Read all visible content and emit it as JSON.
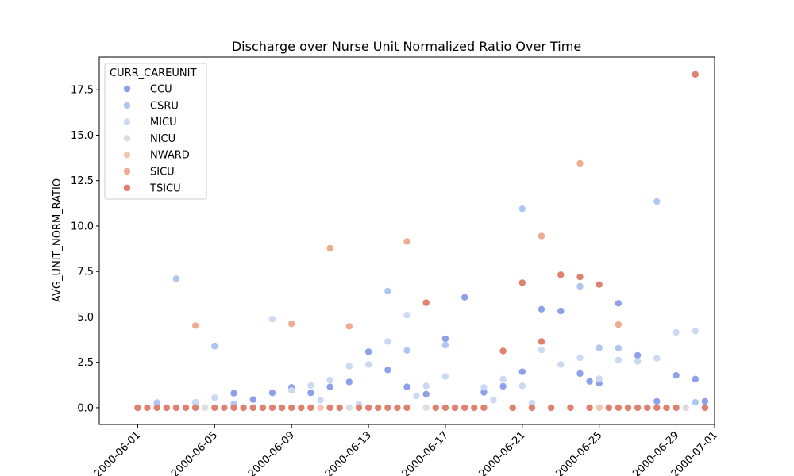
{
  "chart_data": {
    "type": "scatter",
    "title": "Discharge over Nurse Unit Normalized Ratio Over Time",
    "xlabel": "",
    "ylabel": "AVG_UNIT_NORM_RATIO",
    "xlim": [
      "2000-05-30",
      "2000-07-01"
    ],
    "ylim": [
      -0.92,
      19.3
    ],
    "x_ticks": [
      "2000-06-01",
      "2000-06-05",
      "2000-06-09",
      "2000-06-13",
      "2000-06-17",
      "2000-06-21",
      "2000-06-25",
      "2000-06-29",
      "2000-07-01"
    ],
    "y_ticks": [
      0.0,
      2.5,
      5.0,
      7.5,
      10.0,
      12.5,
      15.0,
      17.5
    ],
    "y_tick_labels": [
      "0.0",
      "2.5",
      "5.0",
      "7.5",
      "10.0",
      "12.5",
      "15.0",
      "17.5"
    ],
    "grid": false,
    "legend": {
      "title": "CURR_CAREUNIT",
      "placement": "upper-left"
    },
    "series": [
      {
        "name": "CCU",
        "color": "#8da0ea",
        "points": [
          [
            "2000-06-01",
            0
          ],
          [
            "2000-06-05",
            3.4
          ],
          [
            "2000-06-06",
            0.8
          ],
          [
            "2000-06-07",
            0.45
          ],
          [
            "2000-06-08",
            0.82
          ],
          [
            "2000-06-09",
            1.12
          ],
          [
            "2000-06-10",
            0.82
          ],
          [
            "2000-06-11",
            1.15
          ],
          [
            "2000-06-12",
            1.42
          ],
          [
            "2000-06-13",
            3.08
          ],
          [
            "2000-06-14",
            2.08
          ],
          [
            "2000-06-15",
            1.15
          ],
          [
            "2000-06-16",
            0.75
          ],
          [
            "2000-06-17",
            3.8
          ],
          [
            "2000-06-18",
            6.08
          ],
          [
            "2000-06-19",
            0.85
          ],
          [
            "2000-06-20",
            1.18
          ],
          [
            "2000-06-21",
            1.98
          ],
          [
            "2000-06-22",
            5.42
          ],
          [
            "2000-06-23",
            5.32
          ],
          [
            "2000-06-24",
            1.88
          ],
          [
            "2000-06-24.5",
            1.45
          ],
          [
            "2000-06-25",
            1.35
          ],
          [
            "2000-06-26",
            5.75
          ],
          [
            "2000-06-27",
            2.88
          ],
          [
            "2000-06-28",
            0.35
          ],
          [
            "2000-06-29",
            1.78
          ],
          [
            "2000-06-30",
            1.58
          ],
          [
            "2000-06-30.5",
            0.35
          ]
        ]
      },
      {
        "name": "CSRU",
        "color": "#afc6f2",
        "points": [
          [
            "2000-06-02",
            0.28
          ],
          [
            "2000-06-03",
            7.1
          ],
          [
            "2000-06-04",
            0.3
          ],
          [
            "2000-06-05",
            3.38
          ],
          [
            "2000-06-06",
            0.2
          ],
          [
            "2000-06-14",
            6.42
          ],
          [
            "2000-06-15",
            3.15
          ],
          [
            "2000-06-17",
            3.45
          ],
          [
            "2000-06-21",
            10.95
          ],
          [
            "2000-06-24",
            6.68
          ],
          [
            "2000-06-25",
            3.3
          ],
          [
            "2000-06-26",
            3.28
          ],
          [
            "2000-06-28",
            11.35
          ],
          [
            "2000-06-30",
            0.3
          ]
        ]
      },
      {
        "name": "MICU",
        "color": "#cbd9f2",
        "points": [
          [
            "2000-06-04",
            0.28
          ],
          [
            "2000-06-05",
            0.55
          ],
          [
            "2000-06-08",
            4.88
          ],
          [
            "2000-06-09",
            0.95
          ],
          [
            "2000-06-10",
            1.22
          ],
          [
            "2000-06-10.5",
            0.42
          ],
          [
            "2000-06-11",
            1.52
          ],
          [
            "2000-06-12",
            2.28
          ],
          [
            "2000-06-12.5",
            0.2
          ],
          [
            "2000-06-13",
            2.38
          ],
          [
            "2000-06-14",
            3.65
          ],
          [
            "2000-06-15",
            5.1
          ],
          [
            "2000-06-15.5",
            0.65
          ],
          [
            "2000-06-16",
            1.2
          ],
          [
            "2000-06-17",
            1.72
          ],
          [
            "2000-06-19",
            1.12
          ],
          [
            "2000-06-19.5",
            0.42
          ],
          [
            "2000-06-20",
            1.58
          ],
          [
            "2000-06-21",
            1.2
          ],
          [
            "2000-06-21.5",
            0.25
          ],
          [
            "2000-06-22",
            3.18
          ],
          [
            "2000-06-23",
            2.38
          ],
          [
            "2000-06-24",
            2.75
          ],
          [
            "2000-06-25",
            1.6
          ],
          [
            "2000-06-26",
            2.62
          ],
          [
            "2000-06-27",
            2.55
          ],
          [
            "2000-06-28",
            2.72
          ],
          [
            "2000-06-29",
            4.15
          ],
          [
            "2000-06-30",
            4.22
          ]
        ]
      },
      {
        "name": "NICU",
        "color": "#dcdde0",
        "points": [
          [
            "2000-06-04.5",
            0
          ],
          [
            "2000-06-12",
            0
          ],
          [
            "2000-06-16",
            0
          ],
          [
            "2000-06-22.5",
            0
          ],
          [
            "2000-06-29.5",
            0
          ]
        ]
      },
      {
        "name": "NWARD",
        "color": "#f4c6b2",
        "points": [
          [
            "2000-06-10.5",
            0
          ],
          [
            "2000-06-20.5",
            0
          ],
          [
            "2000-06-25",
            0
          ]
        ]
      },
      {
        "name": "SICU",
        "color": "#eeac93",
        "points": [
          [
            "2000-06-04",
            4.52
          ],
          [
            "2000-06-09",
            4.62
          ],
          [
            "2000-06-11",
            8.78
          ],
          [
            "2000-06-12",
            4.48
          ],
          [
            "2000-06-15",
            9.15
          ],
          [
            "2000-06-22",
            9.45
          ],
          [
            "2000-06-24",
            13.45
          ],
          [
            "2000-06-26",
            4.58
          ],
          [
            "2000-06-25.5",
            0
          ]
        ]
      },
      {
        "name": "TSICU",
        "color": "#e0806e",
        "points": [
          [
            "2000-06-01",
            0
          ],
          [
            "2000-06-01.5",
            0
          ],
          [
            "2000-06-02",
            0
          ],
          [
            "2000-06-02.5",
            0
          ],
          [
            "2000-06-03",
            0
          ],
          [
            "2000-06-03.5",
            0
          ],
          [
            "2000-06-04",
            0
          ],
          [
            "2000-06-05",
            0
          ],
          [
            "2000-06-05.5",
            0
          ],
          [
            "2000-06-06",
            0
          ],
          [
            "2000-06-06.5",
            0
          ],
          [
            "2000-06-07",
            0
          ],
          [
            "2000-06-07.5",
            0
          ],
          [
            "2000-06-08",
            0
          ],
          [
            "2000-06-08.5",
            0
          ],
          [
            "2000-06-09",
            0
          ],
          [
            "2000-06-09.5",
            0
          ],
          [
            "2000-06-10",
            0
          ],
          [
            "2000-06-11",
            0
          ],
          [
            "2000-06-11.5",
            0
          ],
          [
            "2000-06-12.5",
            0
          ],
          [
            "2000-06-13",
            0
          ],
          [
            "2000-06-13.5",
            0
          ],
          [
            "2000-06-14",
            0
          ],
          [
            "2000-06-14.5",
            0
          ],
          [
            "2000-06-15",
            0
          ],
          [
            "2000-06-16",
            5.78
          ],
          [
            "2000-06-16.5",
            0
          ],
          [
            "2000-06-17",
            0
          ],
          [
            "2000-06-17.5",
            0
          ],
          [
            "2000-06-18",
            0
          ],
          [
            "2000-06-18.5",
            0
          ],
          [
            "2000-06-19",
            0
          ],
          [
            "2000-06-20",
            3.12
          ],
          [
            "2000-06-20.5",
            0
          ],
          [
            "2000-06-21",
            6.88
          ],
          [
            "2000-06-21.5",
            0
          ],
          [
            "2000-06-22",
            3.65
          ],
          [
            "2000-06-22.5",
            0
          ],
          [
            "2000-06-23",
            7.32
          ],
          [
            "2000-06-23.5",
            0
          ],
          [
            "2000-06-24",
            7.2
          ],
          [
            "2000-06-24.5",
            0
          ],
          [
            "2000-06-25",
            6.78
          ],
          [
            "2000-06-25.5",
            0
          ],
          [
            "2000-06-26",
            0
          ],
          [
            "2000-06-26.5",
            0
          ],
          [
            "2000-06-27",
            0
          ],
          [
            "2000-06-27.5",
            0
          ],
          [
            "2000-06-28",
            0
          ],
          [
            "2000-06-28.5",
            0
          ],
          [
            "2000-06-29",
            0
          ],
          [
            "2000-06-30",
            18.35
          ],
          [
            "2000-06-30.5",
            0
          ]
        ]
      }
    ]
  }
}
